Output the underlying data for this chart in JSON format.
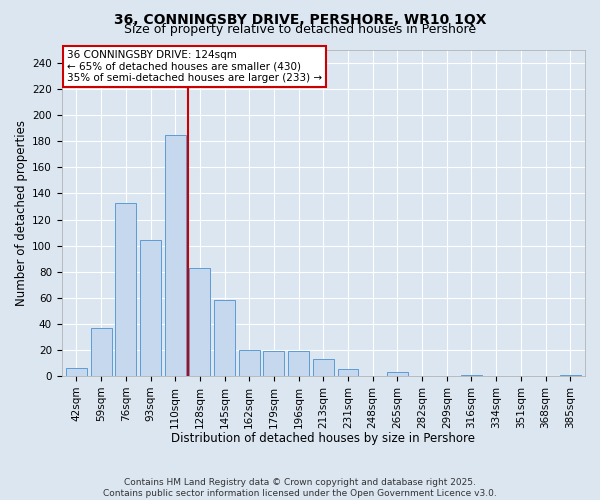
{
  "title": "36, CONNINGSBY DRIVE, PERSHORE, WR10 1QX",
  "subtitle": "Size of property relative to detached houses in Pershore",
  "xlabel": "Distribution of detached houses by size in Pershore",
  "ylabel": "Number of detached properties",
  "categories": [
    "42sqm",
    "59sqm",
    "76sqm",
    "93sqm",
    "110sqm",
    "128sqm",
    "145sqm",
    "162sqm",
    "179sqm",
    "196sqm",
    "213sqm",
    "231sqm",
    "248sqm",
    "265sqm",
    "282sqm",
    "299sqm",
    "316sqm",
    "334sqm",
    "351sqm",
    "368sqm",
    "385sqm"
  ],
  "values": [
    6,
    37,
    133,
    104,
    185,
    83,
    58,
    20,
    19,
    19,
    13,
    5,
    0,
    3,
    0,
    0,
    1,
    0,
    0,
    0,
    1
  ],
  "bar_color": "#c5d8ed",
  "bar_edge_color": "#5b9bd5",
  "vline_x": 4.5,
  "vline_color": "#cc0000",
  "annotation_text": "36 CONNINGSBY DRIVE: 124sqm\n← 65% of detached houses are smaller (430)\n35% of semi-detached houses are larger (233) →",
  "ylim": [
    0,
    250
  ],
  "yticks": [
    0,
    20,
    40,
    60,
    80,
    100,
    120,
    140,
    160,
    180,
    200,
    220,
    240
  ],
  "background_color": "#dce6f1",
  "grid_color": "#ffffff",
  "footer": "Contains HM Land Registry data © Crown copyright and database right 2025.\nContains public sector information licensed under the Open Government Licence v3.0.",
  "title_fontsize": 10,
  "subtitle_fontsize": 9,
  "axis_label_fontsize": 8.5,
  "tick_fontsize": 7.5,
  "annotation_fontsize": 7.5,
  "footer_fontsize": 6.5
}
